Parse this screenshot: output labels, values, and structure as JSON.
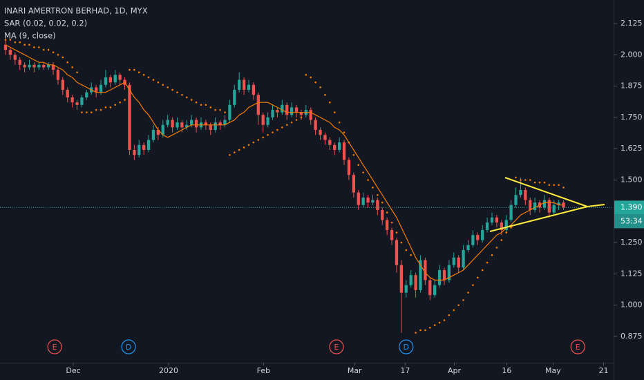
{
  "chart_data": {
    "type": "candlestick",
    "title": "INARI AMERTRON BERHAD, 1D, MYX",
    "up_color": "#26a69a",
    "down_color": "#ef5350",
    "xlim": [
      -1.16,
      127.5
    ],
    "ylim": [
      0.77,
      2.219
    ],
    "grid": false,
    "yticks": [
      2.125,
      {
        "value": 2,
        "label": "2.000"
      },
      1.875,
      {
        "value": 1.75,
        "label": "1.750"
      },
      1.625,
      {
        "value": 1.5,
        "label": "1.500"
      },
      {
        "value": 1.25,
        "label": "1.250"
      },
      1.125,
      {
        "value": 1,
        "label": "1.000"
      },
      0.875
    ],
    "xticks": [
      {
        "value": 14.2,
        "label": "Dec"
      },
      {
        "value": 34.2,
        "label": "2020"
      },
      {
        "value": 54.1,
        "label": "Feb"
      },
      {
        "value": 73.2,
        "label": "Mar"
      },
      {
        "value": 83.8,
        "label": "17"
      },
      {
        "value": 94.1,
        "label": "Apr"
      },
      {
        "value": 105.1,
        "label": "16"
      },
      {
        "value": 114.8,
        "label": "May"
      },
      {
        "value": 125.4,
        "label": "21"
      }
    ],
    "last_price": {
      "value": 1.39,
      "label": "1.390",
      "color": "#26a69a"
    },
    "countdown": "53:34",
    "events": [
      {
        "x": 10.3,
        "label": "E",
        "color": "#ef5350"
      },
      {
        "x": 25.8,
        "label": "D",
        "color": "#2196f3"
      },
      {
        "x": 69.4,
        "label": "E",
        "color": "#ef5350"
      },
      {
        "x": 84,
        "label": "D",
        "color": "#2196f3"
      },
      {
        "x": 120,
        "label": "E",
        "color": "#ef5350"
      }
    ],
    "candles": [
      [
        2.04,
        2.06,
        2.0,
        2.02
      ],
      [
        2.02,
        2.03,
        1.98,
        2.0
      ],
      [
        2.0,
        2.01,
        1.96,
        1.98
      ],
      [
        1.98,
        1.99,
        1.94,
        1.96
      ],
      [
        1.96,
        1.97,
        1.93,
        1.95
      ],
      [
        1.95,
        1.98,
        1.94,
        1.96
      ],
      [
        1.96,
        1.97,
        1.93,
        1.95
      ],
      [
        1.95,
        1.97,
        1.94,
        1.96
      ],
      [
        1.96,
        1.97,
        1.94,
        1.95
      ],
      [
        1.95,
        1.97,
        1.94,
        1.96
      ],
      [
        1.96,
        1.97,
        1.92,
        1.94
      ],
      [
        1.94,
        1.95,
        1.88,
        1.9
      ],
      [
        1.9,
        1.91,
        1.84,
        1.86
      ],
      [
        1.86,
        1.87,
        1.81,
        1.83
      ],
      [
        1.83,
        1.84,
        1.79,
        1.81
      ],
      [
        1.81,
        1.82,
        1.78,
        1.8
      ],
      [
        1.8,
        1.84,
        1.79,
        1.83
      ],
      [
        1.83,
        1.86,
        1.82,
        1.85
      ],
      [
        1.85,
        1.89,
        1.84,
        1.87
      ],
      [
        1.87,
        1.88,
        1.83,
        1.85
      ],
      [
        1.85,
        1.9,
        1.84,
        1.88
      ],
      [
        1.88,
        1.94,
        1.87,
        1.91
      ],
      [
        1.91,
        1.92,
        1.87,
        1.89
      ],
      [
        1.89,
        1.94,
        1.88,
        1.92
      ],
      [
        1.92,
        1.93,
        1.88,
        1.9
      ],
      [
        1.9,
        1.91,
        1.86,
        1.88
      ],
      [
        1.88,
        1.89,
        1.6,
        1.62
      ],
      [
        1.62,
        1.64,
        1.58,
        1.6
      ],
      [
        1.6,
        1.66,
        1.59,
        1.64
      ],
      [
        1.64,
        1.65,
        1.6,
        1.62
      ],
      [
        1.62,
        1.68,
        1.61,
        1.66
      ],
      [
        1.66,
        1.72,
        1.65,
        1.7
      ],
      [
        1.7,
        1.71,
        1.66,
        1.68
      ],
      [
        1.68,
        1.74,
        1.67,
        1.72
      ],
      [
        1.72,
        1.76,
        1.71,
        1.74
      ],
      [
        1.74,
        1.75,
        1.69,
        1.71
      ],
      [
        1.71,
        1.75,
        1.7,
        1.73
      ],
      [
        1.73,
        1.74,
        1.69,
        1.71
      ],
      [
        1.71,
        1.74,
        1.7,
        1.72
      ],
      [
        1.72,
        1.76,
        1.71,
        1.74
      ],
      [
        1.74,
        1.75,
        1.69,
        1.71
      ],
      [
        1.71,
        1.75,
        1.7,
        1.73
      ],
      [
        1.73,
        1.74,
        1.7,
        1.72
      ],
      [
        1.72,
        1.73,
        1.68,
        1.7
      ],
      [
        1.7,
        1.75,
        1.69,
        1.73
      ],
      [
        1.73,
        1.74,
        1.7,
        1.72
      ],
      [
        1.72,
        1.76,
        1.71,
        1.74
      ],
      [
        1.74,
        1.82,
        1.73,
        1.8
      ],
      [
        1.8,
        1.88,
        1.79,
        1.86
      ],
      [
        1.86,
        1.93,
        1.85,
        1.9
      ],
      [
        1.9,
        1.91,
        1.84,
        1.86
      ],
      [
        1.86,
        1.9,
        1.85,
        1.88
      ],
      [
        1.88,
        1.89,
        1.82,
        1.84
      ],
      [
        1.84,
        1.85,
        1.72,
        1.76
      ],
      [
        1.76,
        1.77,
        1.69,
        1.72
      ],
      [
        1.72,
        1.77,
        1.71,
        1.75
      ],
      [
        1.75,
        1.8,
        1.74,
        1.78
      ],
      [
        1.78,
        1.79,
        1.75,
        1.77
      ],
      [
        1.77,
        1.82,
        1.76,
        1.8
      ],
      [
        1.8,
        1.81,
        1.74,
        1.76
      ],
      [
        1.76,
        1.81,
        1.75,
        1.79
      ],
      [
        1.79,
        1.8,
        1.75,
        1.77
      ],
      [
        1.77,
        1.78,
        1.74,
        1.76
      ],
      [
        1.76,
        1.8,
        1.75,
        1.78
      ],
      [
        1.78,
        1.79,
        1.72,
        1.74
      ],
      [
        1.74,
        1.75,
        1.68,
        1.7
      ],
      [
        1.7,
        1.71,
        1.66,
        1.68
      ],
      [
        1.68,
        1.69,
        1.64,
        1.66
      ],
      [
        1.66,
        1.67,
        1.62,
        1.64
      ],
      [
        1.64,
        1.65,
        1.6,
        1.62
      ],
      [
        1.62,
        1.67,
        1.61,
        1.65
      ],
      [
        1.65,
        1.66,
        1.56,
        1.58
      ],
      [
        1.58,
        1.59,
        1.5,
        1.52
      ],
      [
        1.52,
        1.53,
        1.43,
        1.45
      ],
      [
        1.45,
        1.46,
        1.38,
        1.4
      ],
      [
        1.4,
        1.45,
        1.39,
        1.43
      ],
      [
        1.43,
        1.44,
        1.39,
        1.41
      ],
      [
        1.41,
        1.44,
        1.4,
        1.42
      ],
      [
        1.42,
        1.43,
        1.36,
        1.38
      ],
      [
        1.38,
        1.39,
        1.32,
        1.34
      ],
      [
        1.34,
        1.35,
        1.28,
        1.3
      ],
      [
        1.3,
        1.31,
        1.24,
        1.26
      ],
      [
        1.26,
        1.27,
        1.13,
        1.16
      ],
      [
        1.16,
        1.18,
        0.89,
        1.05
      ],
      [
        1.05,
        1.1,
        1.03,
        1.08
      ],
      [
        1.08,
        1.14,
        1.07,
        1.12
      ],
      [
        1.12,
        1.13,
        1.03,
        1.06
      ],
      [
        1.06,
        1.2,
        1.05,
        1.18
      ],
      [
        1.18,
        1.19,
        1.08,
        1.1
      ],
      [
        1.1,
        1.11,
        1.02,
        1.04
      ],
      [
        1.04,
        1.1,
        1.03,
        1.08
      ],
      [
        1.08,
        1.16,
        1.07,
        1.14
      ],
      [
        1.14,
        1.15,
        1.08,
        1.1
      ],
      [
        1.1,
        1.18,
        1.09,
        1.16
      ],
      [
        1.16,
        1.21,
        1.15,
        1.19
      ],
      [
        1.19,
        1.2,
        1.13,
        1.15
      ],
      [
        1.15,
        1.24,
        1.14,
        1.22
      ],
      [
        1.22,
        1.26,
        1.21,
        1.24
      ],
      [
        1.24,
        1.3,
        1.23,
        1.28
      ],
      [
        1.28,
        1.29,
        1.24,
        1.26
      ],
      [
        1.26,
        1.32,
        1.25,
        1.3
      ],
      [
        1.3,
        1.35,
        1.29,
        1.33
      ],
      [
        1.33,
        1.37,
        1.32,
        1.35
      ],
      [
        1.35,
        1.36,
        1.31,
        1.33
      ],
      [
        1.33,
        1.34,
        1.28,
        1.3
      ],
      [
        1.3,
        1.36,
        1.29,
        1.34
      ],
      [
        1.34,
        1.42,
        1.33,
        1.4
      ],
      [
        1.4,
        1.47,
        1.39,
        1.44
      ],
      [
        1.44,
        1.51,
        1.43,
        1.46
      ],
      [
        1.46,
        1.47,
        1.4,
        1.42
      ],
      [
        1.42,
        1.43,
        1.36,
        1.38
      ],
      [
        1.38,
        1.43,
        1.37,
        1.41
      ],
      [
        1.41,
        1.42,
        1.37,
        1.39
      ],
      [
        1.39,
        1.44,
        1.38,
        1.42
      ],
      [
        1.42,
        1.43,
        1.35,
        1.37
      ],
      [
        1.37,
        1.42,
        1.36,
        1.4
      ],
      [
        1.4,
        1.42,
        1.38,
        1.41
      ],
      [
        1.41,
        1.42,
        1.38,
        1.39
      ]
    ],
    "series": [
      {
        "name": "MA (9, close)",
        "kind": "line",
        "color": "#f57c00",
        "values": [
          2.04,
          2.03,
          2.02,
          2.01,
          2.0,
          1.99,
          1.98,
          1.97,
          1.97,
          1.96,
          1.96,
          1.95,
          1.94,
          1.92,
          1.91,
          1.89,
          1.88,
          1.87,
          1.86,
          1.85,
          1.85,
          1.85,
          1.86,
          1.87,
          1.88,
          1.89,
          1.86,
          1.83,
          1.81,
          1.78,
          1.76,
          1.73,
          1.7,
          1.68,
          1.67,
          1.68,
          1.69,
          1.7,
          1.71,
          1.72,
          1.72,
          1.72,
          1.72,
          1.72,
          1.72,
          1.72,
          1.72,
          1.73,
          1.74,
          1.76,
          1.77,
          1.79,
          1.8,
          1.81,
          1.81,
          1.81,
          1.8,
          1.79,
          1.78,
          1.77,
          1.77,
          1.77,
          1.77,
          1.77,
          1.77,
          1.76,
          1.75,
          1.74,
          1.73,
          1.71,
          1.7,
          1.68,
          1.65,
          1.62,
          1.59,
          1.56,
          1.53,
          1.5,
          1.47,
          1.44,
          1.41,
          1.38,
          1.35,
          1.31,
          1.27,
          1.23,
          1.19,
          1.16,
          1.13,
          1.11,
          1.1,
          1.1,
          1.1,
          1.11,
          1.12,
          1.13,
          1.14,
          1.16,
          1.18,
          1.2,
          1.22,
          1.24,
          1.26,
          1.28,
          1.29,
          1.31,
          1.32,
          1.34,
          1.36,
          1.37,
          1.38,
          1.39,
          1.4,
          1.41,
          1.41,
          1.41,
          1.4,
          1.4
        ]
      },
      {
        "name": "SAR (0.02, 0.02, 0.2)",
        "kind": "dots",
        "color": "#f57c00",
        "values": [
          2.06,
          2.06,
          2.05,
          2.05,
          2.04,
          2.04,
          2.03,
          2.03,
          2.02,
          2.02,
          2.01,
          2.0,
          1.99,
          1.97,
          1.95,
          1.93,
          1.77,
          1.77,
          1.77,
          1.78,
          1.78,
          1.79,
          1.79,
          1.8,
          1.81,
          1.82,
          1.94,
          1.94,
          1.93,
          1.92,
          1.91,
          1.9,
          1.89,
          1.88,
          1.87,
          1.86,
          1.85,
          1.84,
          1.83,
          1.82,
          1.81,
          1.8,
          1.8,
          1.79,
          1.78,
          1.78,
          1.77,
          1.6,
          1.61,
          1.62,
          1.63,
          1.64,
          1.65,
          1.66,
          1.67,
          1.68,
          1.69,
          1.7,
          1.71,
          1.72,
          1.73,
          1.74,
          1.75,
          1.92,
          1.91,
          1.89,
          1.87,
          1.84,
          1.81,
          1.77,
          1.73,
          1.69,
          1.65,
          1.6,
          1.56,
          1.53,
          1.5,
          1.47,
          1.44,
          1.41,
          1.37,
          1.33,
          1.29,
          1.25,
          1.22,
          1.2,
          0.89,
          0.9,
          0.9,
          0.91,
          0.92,
          0.93,
          0.94,
          0.96,
          0.98,
          1.0,
          1.02,
          1.05,
          1.08,
          1.11,
          1.14,
          1.17,
          1.2,
          1.23,
          1.26,
          1.29,
          1.31,
          1.51,
          1.5,
          1.5,
          1.5,
          1.49,
          1.49,
          1.49,
          1.48,
          1.48,
          1.48,
          1.47
        ]
      }
    ]
  }
}
